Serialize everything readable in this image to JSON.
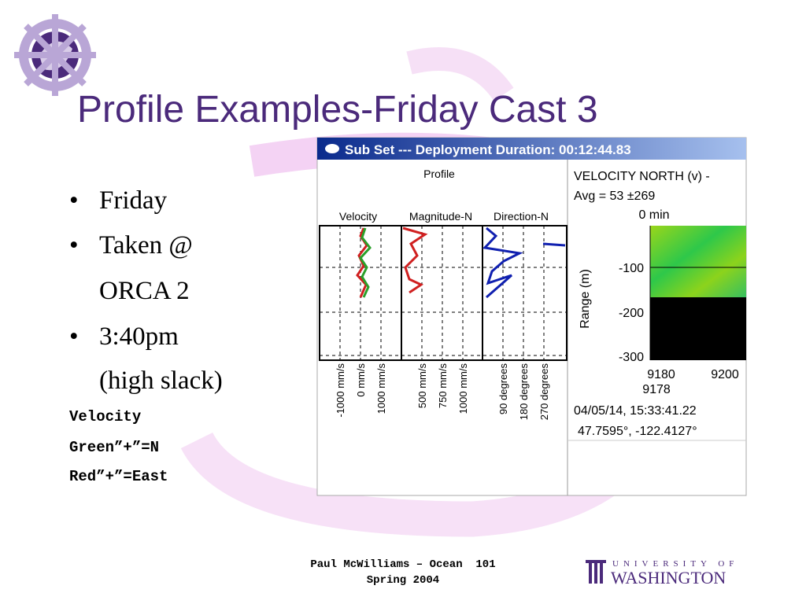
{
  "title": "Profile Examples-Friday Cast 3",
  "bullets": [
    [
      "Friday"
    ],
    [
      "Taken @",
      "ORCA 2"
    ],
    [
      "3:40pm",
      "(high slack)"
    ]
  ],
  "notes": [
    "Velocity",
    "Green”+”=N",
    "Red”+”=East"
  ],
  "screenshot": {
    "window_title": "Sub Set --- Deployment Duration: 00:12:44.83",
    "profile_title": "Profile",
    "columns": [
      "Velocity",
      "Magnitude-N",
      "Direction-N"
    ],
    "axis_labels": [
      [
        "-1000 mm/s",
        "0 mm/s",
        "1000 mm/s"
      ],
      [
        "500 mm/s",
        "750 mm/s",
        "1000 mm/s"
      ],
      [
        "90 degrees",
        "180 degrees",
        "270 degrees"
      ]
    ],
    "heatmap": {
      "title": "VELOCITY NORTH (v) -",
      "avg": "Avg = 53 ±269",
      "time": "0 min",
      "y_label": "Range (m)",
      "yticks": [
        "-100",
        "-200",
        "-300"
      ],
      "xticks": [
        "9180",
        "9200"
      ],
      "x_sub": "9178",
      "timestamp": "04/05/14, 15:33:41.22",
      "position": "47.7595°, -122.4127°"
    }
  },
  "footer": {
    "line1": "Paul McWilliams – Ocean  101",
    "line2": "Spring 2004"
  },
  "logo": {
    "top": "UNIVERSITY OF",
    "bottom": "WASHINGTON"
  }
}
